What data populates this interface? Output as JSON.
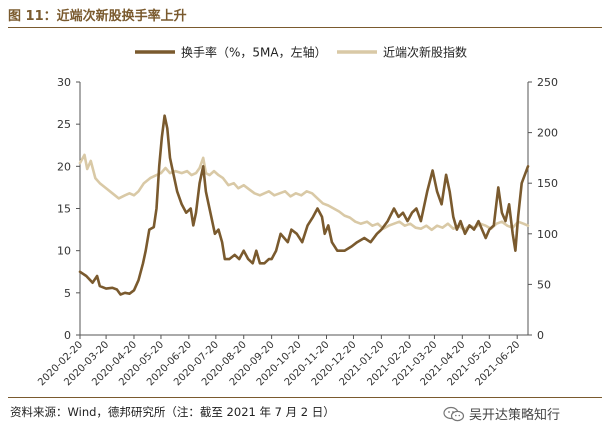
{
  "header": {
    "title": "图 11：近端次新股换手率上升"
  },
  "footer": {
    "source": "资料来源：Wind，德邦研究所（注：截至 2021 年 7 月 2 日）",
    "watermark": "吴开达策略知行"
  },
  "chart_data": {
    "type": "line",
    "title": "",
    "legend_position": "top",
    "grid": false,
    "x_ticks": [
      "2020-02-20",
      "2020-03-20",
      "2020-04-20",
      "2020-05-20",
      "2020-06-20",
      "2020-07-20",
      "2020-08-20",
      "2020-09-20",
      "2020-10-20",
      "2020-11-20",
      "2020-12-20",
      "2021-01-20",
      "2021-02-20",
      "2021-03-20",
      "2021-04-20",
      "2021-05-20",
      "2021-06-20"
    ],
    "y_left": {
      "min": 0,
      "max": 30,
      "ticks": [
        0,
        5,
        10,
        15,
        20,
        25,
        30
      ]
    },
    "y_right": {
      "min": 0,
      "max": 250,
      "ticks": [
        0,
        50,
        100,
        150,
        200,
        250
      ]
    },
    "series": [
      {
        "name": "换手率（%，5MA，左轴）",
        "axis": "left",
        "color": "#7a5a2e",
        "points": [
          [
            "2020-02-20",
            7.5
          ],
          [
            "2020-02-27",
            7.0
          ],
          [
            "2020-03-05",
            6.2
          ],
          [
            "2020-03-10",
            7.0
          ],
          [
            "2020-03-13",
            5.8
          ],
          [
            "2020-03-20",
            5.5
          ],
          [
            "2020-03-27",
            5.6
          ],
          [
            "2020-04-01",
            5.4
          ],
          [
            "2020-04-05",
            4.8
          ],
          [
            "2020-04-10",
            5.0
          ],
          [
            "2020-04-15",
            4.9
          ],
          [
            "2020-04-20",
            5.3
          ],
          [
            "2020-04-25",
            6.5
          ],
          [
            "2020-04-30",
            8.5
          ],
          [
            "2020-05-03",
            10.0
          ],
          [
            "2020-05-07",
            12.5
          ],
          [
            "2020-05-12",
            12.8
          ],
          [
            "2020-05-15",
            15.0
          ],
          [
            "2020-05-18",
            20.0
          ],
          [
            "2020-05-21",
            23.5
          ],
          [
            "2020-05-24",
            26.0
          ],
          [
            "2020-05-27",
            24.5
          ],
          [
            "2020-05-30",
            21.0
          ],
          [
            "2020-06-03",
            19.0
          ],
          [
            "2020-06-07",
            17.0
          ],
          [
            "2020-06-12",
            15.5
          ],
          [
            "2020-06-17",
            14.5
          ],
          [
            "2020-06-22",
            15.0
          ],
          [
            "2020-06-25",
            13.0
          ],
          [
            "2020-06-28",
            14.5
          ],
          [
            "2020-07-02",
            18.0
          ],
          [
            "2020-07-06",
            20.0
          ],
          [
            "2020-07-09",
            17.0
          ],
          [
            "2020-07-12",
            15.5
          ],
          [
            "2020-07-15",
            14.0
          ],
          [
            "2020-07-19",
            12.0
          ],
          [
            "2020-07-23",
            12.5
          ],
          [
            "2020-07-27",
            11.0
          ],
          [
            "2020-07-30",
            9.0
          ],
          [
            "2020-08-04",
            9.0
          ],
          [
            "2020-08-10",
            9.5
          ],
          [
            "2020-08-15",
            9.0
          ],
          [
            "2020-08-20",
            10.0
          ],
          [
            "2020-08-25",
            9.0
          ],
          [
            "2020-08-30",
            8.5
          ],
          [
            "2020-09-03",
            10.0
          ],
          [
            "2020-09-07",
            8.5
          ],
          [
            "2020-09-12",
            8.5
          ],
          [
            "2020-09-17",
            9.0
          ],
          [
            "2020-09-20",
            9.0
          ],
          [
            "2020-09-25",
            10.0
          ],
          [
            "2020-09-30",
            12.0
          ],
          [
            "2020-10-04",
            11.5
          ],
          [
            "2020-10-08",
            11.0
          ],
          [
            "2020-10-12",
            12.5
          ],
          [
            "2020-10-18",
            12.0
          ],
          [
            "2020-10-24",
            11.0
          ],
          [
            "2020-10-30",
            13.0
          ],
          [
            "2020-11-05",
            14.0
          ],
          [
            "2020-11-10",
            15.0
          ],
          [
            "2020-11-15",
            14.0
          ],
          [
            "2020-11-18",
            12.0
          ],
          [
            "2020-11-22",
            13.0
          ],
          [
            "2020-11-26",
            11.0
          ],
          [
            "2020-12-02",
            10.0
          ],
          [
            "2020-12-10",
            10.0
          ],
          [
            "2020-12-18",
            10.5
          ],
          [
            "2020-12-24",
            11.0
          ],
          [
            "2021-01-01",
            11.5
          ],
          [
            "2021-01-08",
            11.0
          ],
          [
            "2021-01-15",
            12.0
          ],
          [
            "2021-01-20",
            12.5
          ],
          [
            "2021-01-27",
            13.5
          ],
          [
            "2021-02-03",
            15.0
          ],
          [
            "2021-02-08",
            14.0
          ],
          [
            "2021-02-13",
            14.5
          ],
          [
            "2021-02-18",
            13.5
          ],
          [
            "2021-02-23",
            14.5
          ],
          [
            "2021-02-28",
            15.0
          ],
          [
            "2021-03-05",
            13.5
          ],
          [
            "2021-03-12",
            17.0
          ],
          [
            "2021-03-18",
            19.5
          ],
          [
            "2021-03-23",
            17.0
          ],
          [
            "2021-03-28",
            15.5
          ],
          [
            "2021-04-02",
            19.0
          ],
          [
            "2021-04-06",
            17.0
          ],
          [
            "2021-04-10",
            14.0
          ],
          [
            "2021-04-14",
            12.5
          ],
          [
            "2021-04-18",
            13.5
          ],
          [
            "2021-04-23",
            12.0
          ],
          [
            "2021-04-28",
            13.0
          ],
          [
            "2021-05-03",
            12.5
          ],
          [
            "2021-05-08",
            13.5
          ],
          [
            "2021-05-12",
            12.5
          ],
          [
            "2021-05-16",
            11.5
          ],
          [
            "2021-05-20",
            12.5
          ],
          [
            "2021-05-25",
            13.0
          ],
          [
            "2021-05-30",
            17.5
          ],
          [
            "2021-06-03",
            14.5
          ],
          [
            "2021-06-07",
            13.5
          ],
          [
            "2021-06-11",
            15.5
          ],
          [
            "2021-06-15",
            12.0
          ],
          [
            "2021-06-18",
            10.0
          ],
          [
            "2021-06-21",
            14.0
          ],
          [
            "2021-06-25",
            18.0
          ],
          [
            "2021-07-02",
            20.0
          ]
        ]
      },
      {
        "name": "近端次新股指数",
        "axis": "right",
        "color": "#d9c9a6",
        "points": [
          [
            "2020-02-20",
            170
          ],
          [
            "2020-02-25",
            178
          ],
          [
            "2020-02-28",
            164
          ],
          [
            "2020-03-03",
            172
          ],
          [
            "2020-03-08",
            155
          ],
          [
            "2020-03-13",
            150
          ],
          [
            "2020-03-20",
            145
          ],
          [
            "2020-03-27",
            140
          ],
          [
            "2020-04-03",
            135
          ],
          [
            "2020-04-10",
            138
          ],
          [
            "2020-04-15",
            140
          ],
          [
            "2020-04-20",
            138
          ],
          [
            "2020-04-25",
            142
          ],
          [
            "2020-05-01",
            150
          ],
          [
            "2020-05-08",
            155
          ],
          [
            "2020-05-15",
            158
          ],
          [
            "2020-05-20",
            160
          ],
          [
            "2020-05-25",
            165
          ],
          [
            "2020-05-30",
            160
          ],
          [
            "2020-06-05",
            162
          ],
          [
            "2020-06-12",
            160
          ],
          [
            "2020-06-18",
            162
          ],
          [
            "2020-06-23",
            158
          ],
          [
            "2020-06-28",
            160
          ],
          [
            "2020-07-02",
            165
          ],
          [
            "2020-07-06",
            175
          ],
          [
            "2020-07-09",
            160
          ],
          [
            "2020-07-13",
            158
          ],
          [
            "2020-07-18",
            162
          ],
          [
            "2020-07-23",
            158
          ],
          [
            "2020-07-28",
            155
          ],
          [
            "2020-08-03",
            148
          ],
          [
            "2020-08-09",
            150
          ],
          [
            "2020-08-14",
            145
          ],
          [
            "2020-08-20",
            148
          ],
          [
            "2020-08-26",
            144
          ],
          [
            "2020-09-01",
            140
          ],
          [
            "2020-09-07",
            138
          ],
          [
            "2020-09-12",
            140
          ],
          [
            "2020-09-17",
            142
          ],
          [
            "2020-09-23",
            138
          ],
          [
            "2020-09-29",
            140
          ],
          [
            "2020-10-05",
            142
          ],
          [
            "2020-10-11",
            137
          ],
          [
            "2020-10-17",
            140
          ],
          [
            "2020-10-23",
            138
          ],
          [
            "2020-10-29",
            142
          ],
          [
            "2020-11-04",
            140
          ],
          [
            "2020-11-10",
            135
          ],
          [
            "2020-11-16",
            130
          ],
          [
            "2020-11-22",
            128
          ],
          [
            "2020-11-28",
            125
          ],
          [
            "2020-12-04",
            122
          ],
          [
            "2020-12-10",
            118
          ],
          [
            "2020-12-16",
            116
          ],
          [
            "2020-12-22",
            112
          ],
          [
            "2020-12-28",
            110
          ],
          [
            "2021-01-04",
            112
          ],
          [
            "2021-01-10",
            108
          ],
          [
            "2021-01-16",
            110
          ],
          [
            "2021-01-22",
            105
          ],
          [
            "2021-01-28",
            108
          ],
          [
            "2021-02-03",
            110
          ],
          [
            "2021-02-09",
            112
          ],
          [
            "2021-02-15",
            108
          ],
          [
            "2021-02-21",
            110
          ],
          [
            "2021-02-27",
            106
          ],
          [
            "2021-03-05",
            105
          ],
          [
            "2021-03-11",
            108
          ],
          [
            "2021-03-17",
            104
          ],
          [
            "2021-03-23",
            108
          ],
          [
            "2021-03-29",
            106
          ],
          [
            "2021-04-04",
            110
          ],
          [
            "2021-04-10",
            105
          ],
          [
            "2021-04-16",
            108
          ],
          [
            "2021-04-22",
            104
          ],
          [
            "2021-04-28",
            108
          ],
          [
            "2021-05-04",
            106
          ],
          [
            "2021-05-10",
            110
          ],
          [
            "2021-05-16",
            108
          ],
          [
            "2021-05-22",
            105
          ],
          [
            "2021-05-28",
            110
          ],
          [
            "2021-06-03",
            112
          ],
          [
            "2021-06-09",
            108
          ],
          [
            "2021-06-15",
            106
          ],
          [
            "2021-06-21",
            112
          ],
          [
            "2021-06-27",
            110
          ],
          [
            "2021-07-02",
            108
          ]
        ]
      }
    ]
  }
}
